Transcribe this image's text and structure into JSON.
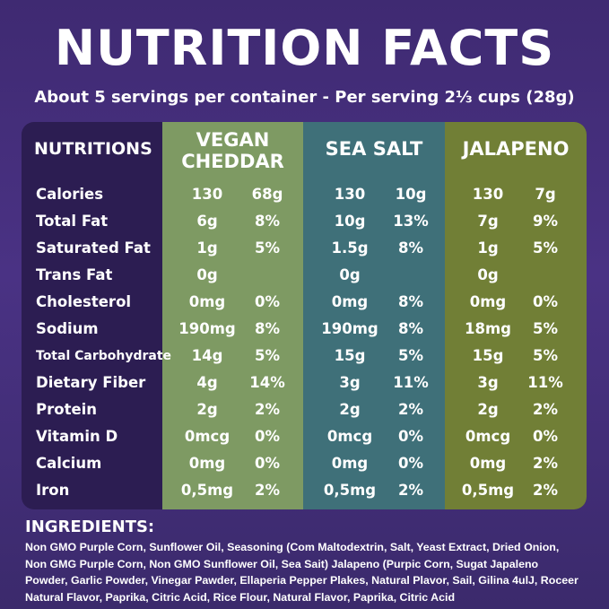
{
  "header": {
    "title": "NUTRITION FACTS",
    "subtitle": "About 5 servings per container - Per serving 2⅓ cups (28g)"
  },
  "table": {
    "columns": {
      "nutrient": "NUTRITIONS",
      "vegan_cheddar_line1": "VEGAN",
      "vegan_cheddar_line2": "CHEDDAR",
      "sea_salt": "SEA SALT",
      "jalapeno": "JALAPENO"
    },
    "rows": [
      {
        "label": "Calories",
        "vc_amt": "130",
        "vc_pct": "68g",
        "ss_amt": "130",
        "ss_pct": "10g",
        "jp_amt": "130",
        "jp_pct": "7g"
      },
      {
        "label": "Total Fat",
        "vc_amt": "6g",
        "vc_pct": "8%",
        "ss_amt": "10g",
        "ss_pct": "13%",
        "jp_amt": "7g",
        "jp_pct": "9%"
      },
      {
        "label": "Saturated Fat",
        "vc_amt": "1g",
        "vc_pct": "5%",
        "ss_amt": "1.5g",
        "ss_pct": "8%",
        "jp_amt": "1g",
        "jp_pct": "5%"
      },
      {
        "label": "Trans Fat",
        "vc_amt": "0g",
        "vc_pct": "",
        "ss_amt": "0g",
        "ss_pct": "",
        "jp_amt": "0g",
        "jp_pct": ""
      },
      {
        "label": "Cholesterol",
        "vc_amt": "0mg",
        "vc_pct": "0%",
        "ss_amt": "0mg",
        "ss_pct": "8%",
        "jp_amt": "0mg",
        "jp_pct": "0%"
      },
      {
        "label": "Sodium",
        "vc_amt": "190mg",
        "vc_pct": "8%",
        "ss_amt": "190mg",
        "ss_pct": "8%",
        "jp_amt": "18mg",
        "jp_pct": "5%"
      },
      {
        "label": "Total Carbohydrate",
        "vc_amt": "14g",
        "vc_pct": "5%",
        "ss_amt": "15g",
        "ss_pct": "5%",
        "jp_amt": "15g",
        "jp_pct": "5%"
      },
      {
        "label": "Dietary Fiber",
        "vc_amt": "4g",
        "vc_pct": "14%",
        "ss_amt": "3g",
        "ss_pct": "11%",
        "jp_amt": "3g",
        "jp_pct": "11%"
      },
      {
        "label": "Protein",
        "vc_amt": "2g",
        "vc_pct": "2%",
        "ss_amt": "2g",
        "ss_pct": "2%",
        "jp_amt": "2g",
        "jp_pct": "2%"
      },
      {
        "label": "Vitamin D",
        "vc_amt": "0mcg",
        "vc_pct": "0%",
        "ss_amt": "0mcg",
        "ss_pct": "0%",
        "jp_amt": "0mcg",
        "jp_pct": "0%"
      },
      {
        "label": "Calcium",
        "vc_amt": "0mg",
        "vc_pct": "0%",
        "ss_amt": "0mg",
        "ss_pct": "0%",
        "jp_amt": "0mg",
        "jp_pct": "2%"
      },
      {
        "label": "Iron",
        "vc_amt": "0,5mg",
        "vc_pct": "2%",
        "ss_amt": "0,5mg",
        "ss_pct": "2%",
        "jp_amt": "0,5mg",
        "jp_pct": "2%"
      }
    ]
  },
  "ingredients": {
    "title": "INGREDIENTS:",
    "lines": [
      "Non GMO Purple Corn, Sunflower Oil, Seasoning (Com Maltodextrin, Salt, Yeast Extract, Dried Onion,",
      "Non GMG Purple Corn, Non GMO Sunflower Oil, Sea Sait) Jalapeno (Purpic Corn, Sugat Japaleno",
      "Powder, Garlic Powder, Vinegar Pawder, Ellaperia Pepper Plakes, Natural Plavor, Sail, Gilina 4ulJ, Roceer",
      "Natural Flavor, Paprika, Citric Acid, Rice Flour, Natural Flavor, Paprika, Citric Acid"
    ]
  },
  "colors": {
    "background": "#43307a",
    "panel": "#2c1d52",
    "vegan_cheddar": "#7e9a63",
    "sea_salt": "#3f7079",
    "jalapeno": "#717f36"
  }
}
